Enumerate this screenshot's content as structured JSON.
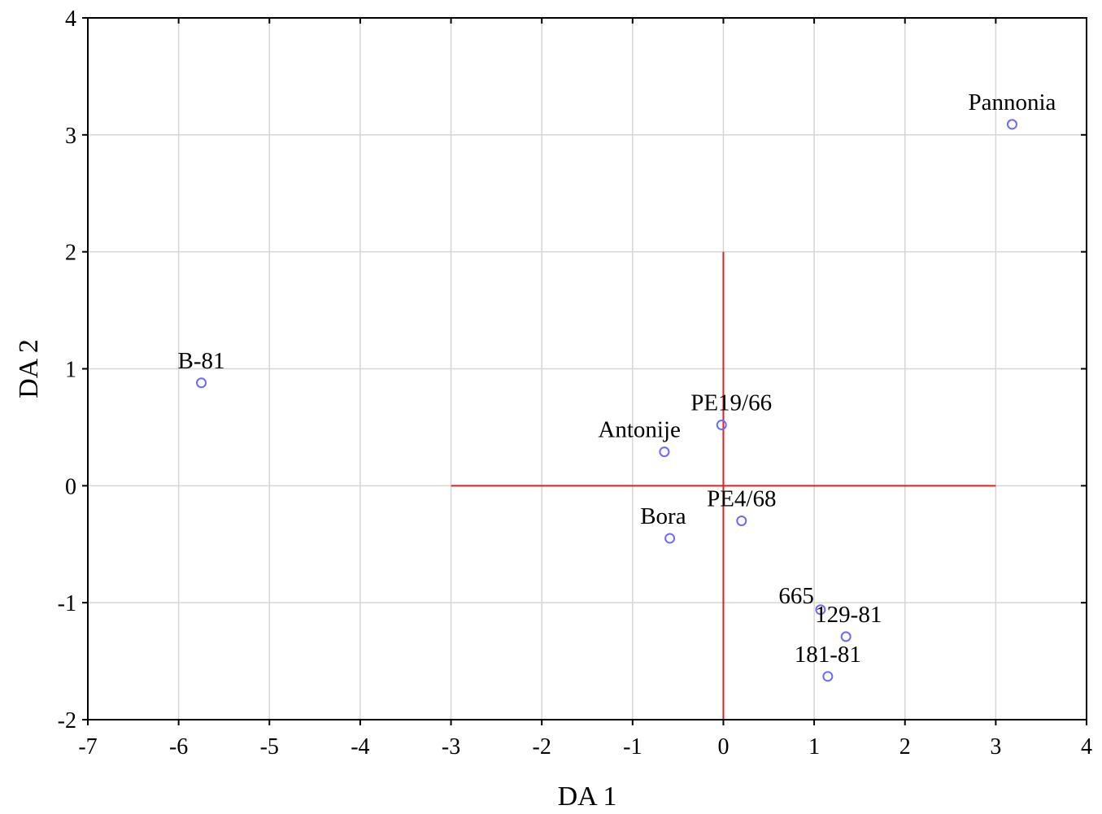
{
  "chart_data": {
    "type": "scatter",
    "xlabel": "DA 1",
    "ylabel": "DA 2",
    "xlim": [
      -7,
      4
    ],
    "ylim": [
      -2,
      4
    ],
    "x_ticks": [
      -7,
      -6,
      -5,
      -4,
      -3,
      -2,
      -1,
      0,
      1,
      2,
      3,
      4
    ],
    "y_ticks": [
      -2,
      -1,
      0,
      1,
      2,
      3,
      4
    ],
    "grid": true,
    "point_color": "#6a6aff",
    "reference_line_color": "#e02020",
    "reference_lines": {
      "horizontal": {
        "y": 0,
        "x_from": -3,
        "x_to": 3
      },
      "vertical": {
        "x": 0,
        "y_from": -2,
        "y_to": 2
      }
    },
    "points": [
      {
        "label": "B-81",
        "x": -5.75,
        "y": 0.88,
        "label_pos": "above"
      },
      {
        "label": "Pannonia",
        "x": 3.18,
        "y": 3.09,
        "label_pos": "above"
      },
      {
        "label": "PE19/66",
        "x": -0.02,
        "y": 0.52,
        "label_pos": "above-right"
      },
      {
        "label": "Antonije",
        "x": -0.65,
        "y": 0.29,
        "label_pos": "above-left"
      },
      {
        "label": "PE4/68",
        "x": 0.2,
        "y": -0.3,
        "label_pos": "above"
      },
      {
        "label": "Bora",
        "x": -0.59,
        "y": -0.45,
        "label_pos": "above-left"
      },
      {
        "label": "665",
        "x": 1.07,
        "y": -1.06,
        "label_pos": "left"
      },
      {
        "label": "129-81",
        "x": 1.35,
        "y": -1.29,
        "label_pos": "above-right"
      },
      {
        "label": "181-81",
        "x": 1.15,
        "y": -1.63,
        "label_pos": "above"
      }
    ]
  }
}
